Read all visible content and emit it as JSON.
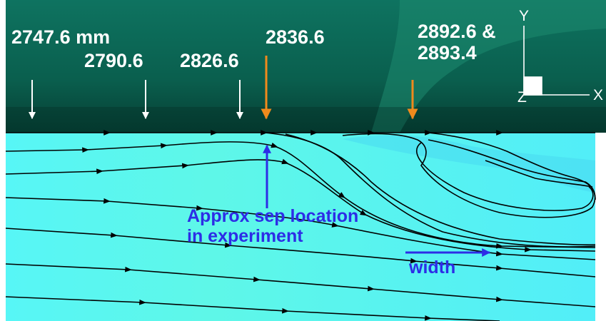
{
  "stations": {
    "s1": "2747.6 mm",
    "s2": "2790.6",
    "s3": "2826.6",
    "s4": "2836.6",
    "s5_line1": "2892.6 &",
    "s5_line2": "2893.4"
  },
  "annotations": {
    "sep_line1": "Approx sep location",
    "sep_line2": "in experiment",
    "width": "width"
  },
  "triad": {
    "y": "Y",
    "x": "X",
    "z": "Z"
  },
  "colors": {
    "top_surface": "#0b6b57",
    "top_surface_light": "#1f8f73",
    "flow_field": "#55f4f4",
    "station_marker": "#ffffff",
    "experiment_marker": "#f08a1c",
    "annotation": "#2d2de6",
    "streamline": "#000000"
  }
}
